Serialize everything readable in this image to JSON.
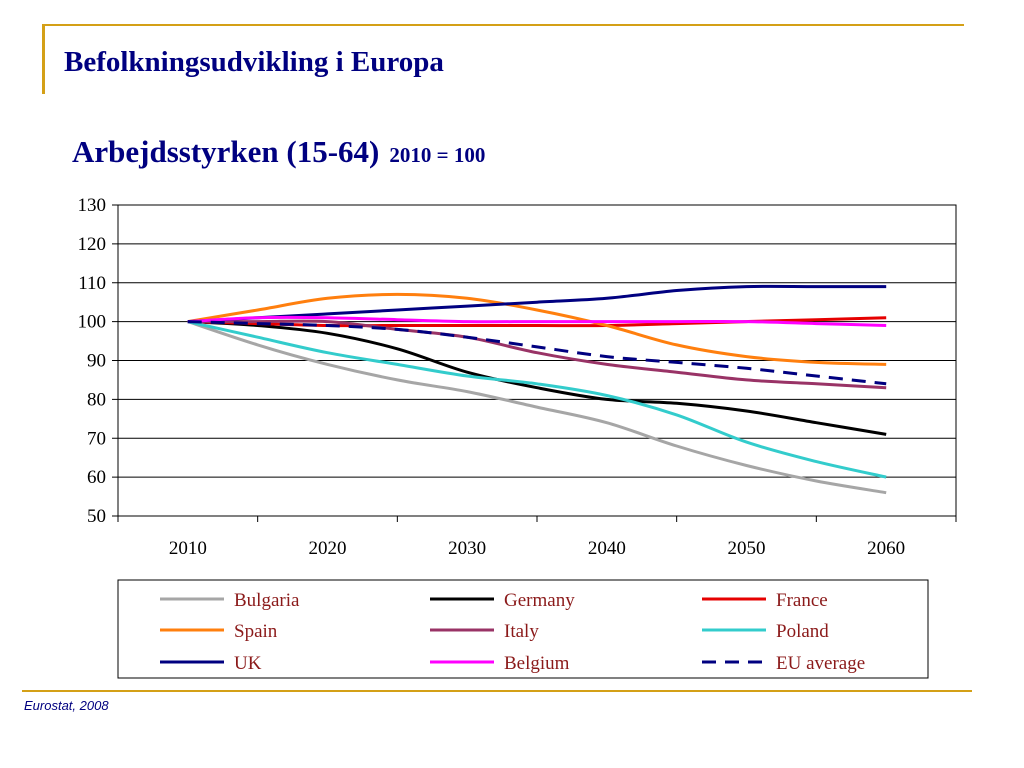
{
  "slide": {
    "title": "Befolkningsudvikling i Europa",
    "source": "Eurostat, 2008"
  },
  "colors": {
    "accent_rule": "#d4a017",
    "title": "#000080",
    "legend_text": "#8b1a1a"
  },
  "chart_data": {
    "type": "line",
    "title": "Arbejdsstyrken (15-64)",
    "subtitle": "2010 = 100",
    "xlabel": "",
    "ylabel": "",
    "x_ticks": [
      "2010",
      "2020",
      "2030",
      "2040",
      "2050",
      "2060"
    ],
    "y_ticks": [
      "50",
      "60",
      "70",
      "80",
      "90",
      "100",
      "110",
      "120",
      "130"
    ],
    "xlim": [
      2005,
      2065
    ],
    "ylim": [
      50,
      130
    ],
    "grid": "horizontal",
    "legend_position": "bottom",
    "series": [
      {
        "name": "Bulgaria",
        "color": "#a6a6a6",
        "dash": false,
        "x": [
          2010,
          2015,
          2020,
          2025,
          2030,
          2035,
          2040,
          2045,
          2050,
          2055,
          2060
        ],
        "y": [
          100,
          94,
          89,
          85,
          82,
          78,
          74,
          68,
          63,
          59,
          56
        ]
      },
      {
        "name": "Germany",
        "color": "#000000",
        "dash": false,
        "x": [
          2010,
          2015,
          2020,
          2025,
          2030,
          2035,
          2040,
          2045,
          2050,
          2055,
          2060
        ],
        "y": [
          100,
          99,
          97,
          93,
          87,
          83,
          80,
          79,
          77,
          74,
          71
        ]
      },
      {
        "name": "France",
        "color": "#e60000",
        "dash": false,
        "x": [
          2010,
          2015,
          2020,
          2025,
          2030,
          2035,
          2040,
          2045,
          2050,
          2055,
          2060
        ],
        "y": [
          100,
          99.5,
          99,
          99,
          99,
          99,
          99,
          99.5,
          100,
          100.5,
          101
        ]
      },
      {
        "name": "Spain",
        "color": "#ff7f0e",
        "dash": false,
        "x": [
          2010,
          2015,
          2020,
          2025,
          2030,
          2035,
          2040,
          2045,
          2050,
          2055,
          2060
        ],
        "y": [
          100,
          103,
          106,
          107,
          106,
          103,
          99,
          94,
          91,
          89.5,
          89
        ]
      },
      {
        "name": "Italy",
        "color": "#993366",
        "dash": false,
        "x": [
          2010,
          2015,
          2020,
          2025,
          2030,
          2035,
          2040,
          2045,
          2050,
          2055,
          2060
        ],
        "y": [
          100,
          100,
          100,
          98,
          96,
          92,
          89,
          87,
          85,
          84,
          83
        ]
      },
      {
        "name": "Poland",
        "color": "#33cccc",
        "dash": false,
        "x": [
          2010,
          2015,
          2020,
          2025,
          2030,
          2035,
          2040,
          2045,
          2050,
          2055,
          2060
        ],
        "y": [
          100,
          96,
          92,
          89,
          86,
          84,
          81,
          76,
          69,
          64,
          60
        ]
      },
      {
        "name": "UK",
        "color": "#000080",
        "dash": false,
        "x": [
          2010,
          2015,
          2020,
          2025,
          2030,
          2035,
          2040,
          2045,
          2050,
          2055,
          2060
        ],
        "y": [
          100,
          101,
          102,
          103,
          104,
          105,
          106,
          108,
          109,
          109,
          109
        ]
      },
      {
        "name": "Belgium",
        "color": "#ff00ff",
        "dash": false,
        "x": [
          2010,
          2015,
          2020,
          2025,
          2030,
          2035,
          2040,
          2045,
          2050,
          2055,
          2060
        ],
        "y": [
          100,
          101,
          101,
          100.5,
          100,
          100,
          100,
          100,
          100,
          99.5,
          99
        ]
      },
      {
        "name": "EU average",
        "color": "#000080",
        "dash": true,
        "x": [
          2010,
          2015,
          2020,
          2025,
          2030,
          2035,
          2040,
          2045,
          2050,
          2055,
          2060
        ],
        "y": [
          100,
          99.5,
          99,
          98,
          96,
          93.5,
          91,
          89.5,
          88,
          86,
          84
        ]
      }
    ]
  }
}
